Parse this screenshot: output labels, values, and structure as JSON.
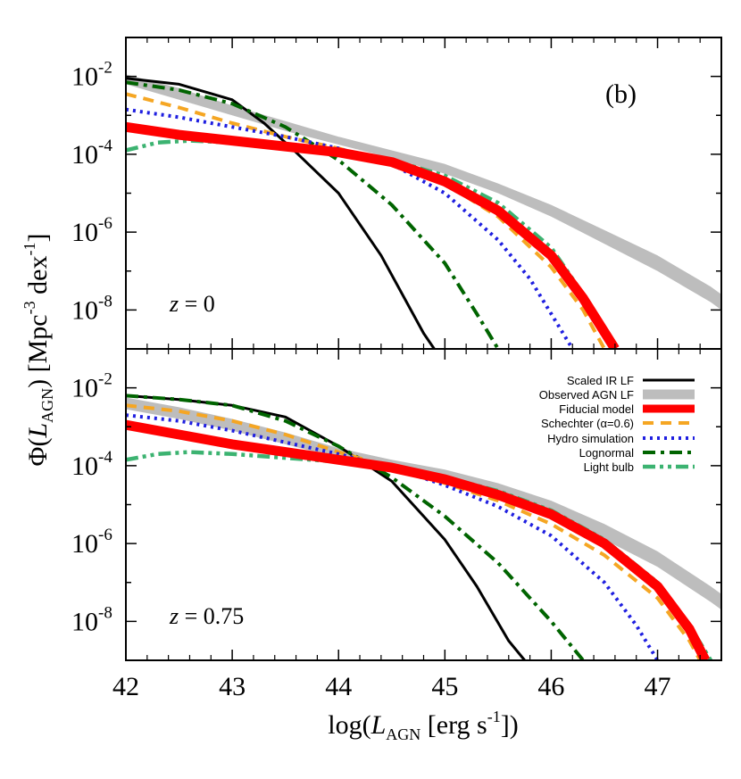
{
  "chart_data": {
    "type": "line",
    "panel_label": "(b)",
    "xlabel_prefix": "log(",
    "xlabel_symbol": "L",
    "xlabel_sub": "AGN",
    "xlabel_unit": " [erg s",
    "xlabel_exp": "-1",
    "xlabel_suffix": "])",
    "ylabel_prefix": "Φ(",
    "ylabel_symbol": "L",
    "ylabel_sub": "AGN",
    "ylabel_mid": ") [Mpc",
    "ylabel_exp1": "-3",
    "ylabel_unit2": " dex",
    "ylabel_exp2": "-1",
    "ylabel_suffix": "]",
    "xlim": [
      42,
      47.6
    ],
    "ylim_log10": [
      -9.0,
      -1.0
    ],
    "y_scale": "log",
    "x_ticks": [
      "42",
      "43",
      "44",
      "45",
      "46",
      "47"
    ],
    "y_tick_base": "10",
    "y_tick_exps": [
      "-2",
      "-4",
      "-6",
      "-8"
    ],
    "legend_position": "lower-panel top-right",
    "legend": [
      "Scaled IR LF",
      "Observed AGN LF",
      "Fiducial model",
      "Schechter (α=0.6)",
      "Hydro simulation",
      "Lognormal",
      "Light bulb"
    ],
    "colors": {
      "scaled_ir": "#000000",
      "observed": "#bdbdbd",
      "fiducial": "#ff0000",
      "schechter": "#f5a623",
      "hydro": "#1f1fe0",
      "lognormal": "#006400",
      "lightbulb": "#3cb371"
    },
    "panels": [
      {
        "label_var": "z",
        "label_val": " = 0",
        "x": [
          42.0,
          42.5,
          43.0,
          43.5,
          44.0,
          44.5,
          45.0,
          45.5,
          46.0,
          46.5,
          47.0,
          47.5,
          47.6
        ],
        "series": [
          {
            "name": "Observed AGN LF",
            "style": "band",
            "lower": [
              -2.2,
              -2.6,
              -3.0,
              -3.4,
              -3.75,
              -4.1,
              -4.5,
              -5.0,
              -5.6,
              -6.3,
              -7.0,
              -7.8,
              -8.0
            ],
            "upper": [
              -1.95,
              -2.3,
              -2.75,
              -3.15,
              -3.55,
              -3.9,
              -4.25,
              -4.75,
              -5.3,
              -5.95,
              -6.6,
              -7.4,
              -7.6
            ]
          },
          {
            "name": "Scaled IR LF",
            "style": "solid",
            "x": [
              42.0,
              42.5,
              43.0,
              43.3,
              43.6,
              44.0,
              44.4,
              44.8,
              44.9
            ],
            "values": [
              -2.05,
              -2.2,
              -2.6,
              -3.2,
              -3.95,
              -5.0,
              -6.6,
              -8.6,
              -9.0
            ]
          },
          {
            "name": "Fiducial model",
            "style": "thick",
            "x": [
              42.0,
              42.5,
              43.0,
              43.5,
              44.0,
              44.5,
              45.0,
              45.5,
              46.0,
              46.3,
              46.6
            ],
            "values": [
              -3.3,
              -3.5,
              -3.65,
              -3.8,
              -3.95,
              -4.2,
              -4.7,
              -5.45,
              -6.6,
              -7.7,
              -9.0
            ]
          },
          {
            "name": "Schechter (α=0.6)",
            "style": "dashed",
            "x": [
              42.0,
              42.5,
              43.0,
              43.5,
              44.0,
              44.5,
              45.0,
              45.5,
              46.0,
              46.3,
              46.5
            ],
            "values": [
              -2.45,
              -2.8,
              -3.2,
              -3.55,
              -3.85,
              -4.2,
              -4.75,
              -5.6,
              -6.9,
              -8.0,
              -9.0
            ]
          },
          {
            "name": "Hydro simulation",
            "style": "dotted",
            "x": [
              42.0,
              42.5,
              43.0,
              43.5,
              44.0,
              44.5,
              45.0,
              45.5,
              45.8,
              46.0,
              46.2
            ],
            "values": [
              -2.85,
              -3.05,
              -3.3,
              -3.55,
              -3.85,
              -4.25,
              -5.0,
              -6.2,
              -7.2,
              -8.1,
              -9.0
            ]
          },
          {
            "name": "Lognormal",
            "style": "dashdot",
            "x": [
              42.0,
              42.5,
              43.0,
              43.5,
              44.0,
              44.5,
              45.0,
              45.3,
              45.5
            ],
            "values": [
              -2.15,
              -2.35,
              -2.7,
              -3.3,
              -4.15,
              -5.3,
              -6.8,
              -8.1,
              -9.0
            ]
          },
          {
            "name": "Light bulb",
            "style": "dashdotdot",
            "x": [
              42.0,
              42.3,
              42.6,
              43.0,
              43.5,
              44.0,
              44.5,
              45.0,
              45.5,
              46.0,
              46.3,
              46.6
            ],
            "values": [
              -3.9,
              -3.7,
              -3.65,
              -3.7,
              -3.8,
              -3.95,
              -4.15,
              -4.55,
              -5.25,
              -6.4,
              -7.6,
              -9.0
            ]
          }
        ]
      },
      {
        "label_var": "z",
        "label_val": " = 0.75",
        "x": [
          42.0,
          42.5,
          43.0,
          43.5,
          44.0,
          44.5,
          45.0,
          45.5,
          46.0,
          46.5,
          47.0,
          47.5,
          47.6
        ],
        "series": [
          {
            "name": "Observed AGN LF",
            "style": "band",
            "lower": [
              -2.55,
              -2.8,
              -3.1,
              -3.45,
              -3.8,
              -4.1,
              -4.4,
              -4.8,
              -5.3,
              -5.9,
              -6.6,
              -7.5,
              -7.7
            ],
            "upper": [
              -2.25,
              -2.5,
              -2.8,
              -3.15,
              -3.55,
              -3.85,
              -4.1,
              -4.45,
              -4.9,
              -5.5,
              -6.2,
              -7.1,
              -7.3
            ]
          },
          {
            "name": "Scaled IR LF",
            "style": "solid",
            "x": [
              42.0,
              42.5,
              43.0,
              43.5,
              44.0,
              44.5,
              45.0,
              45.3,
              45.6,
              45.75
            ],
            "values": [
              -2.2,
              -2.3,
              -2.45,
              -2.75,
              -3.5,
              -4.4,
              -5.9,
              -7.1,
              -8.5,
              -9.0
            ]
          },
          {
            "name": "Fiducial model",
            "style": "thick",
            "x": [
              42.0,
              42.5,
              43.0,
              43.5,
              44.0,
              44.5,
              45.0,
              45.5,
              46.0,
              46.5,
              47.0,
              47.3,
              47.45
            ],
            "values": [
              -2.95,
              -3.2,
              -3.45,
              -3.65,
              -3.85,
              -4.05,
              -4.35,
              -4.75,
              -5.25,
              -6.0,
              -7.1,
              -8.2,
              -9.0
            ]
          },
          {
            "name": "Schechter (α=0.6)",
            "style": "dashed",
            "x": [
              42.0,
              42.5,
              43.0,
              43.5,
              44.0,
              44.5,
              45.0,
              45.5,
              46.0,
              46.5,
              47.0,
              47.3,
              47.4
            ],
            "values": [
              -2.45,
              -2.6,
              -2.85,
              -3.2,
              -3.65,
              -4.05,
              -4.45,
              -4.9,
              -5.5,
              -6.3,
              -7.4,
              -8.5,
              -9.0
            ]
          },
          {
            "name": "Hydro simulation",
            "style": "dotted",
            "x": [
              42.0,
              42.5,
              43.0,
              43.5,
              44.0,
              44.5,
              45.0,
              45.5,
              46.0,
              46.5,
              46.8,
              47.0
            ],
            "values": [
              -2.7,
              -2.85,
              -3.1,
              -3.4,
              -3.7,
              -4.05,
              -4.5,
              -5.05,
              -5.8,
              -7.0,
              -8.1,
              -9.0
            ]
          },
          {
            "name": "Lognormal",
            "style": "dashdot",
            "x": [
              42.0,
              42.5,
              43.0,
              43.5,
              44.0,
              44.5,
              45.0,
              45.5,
              46.0,
              46.3
            ],
            "values": [
              -2.2,
              -2.3,
              -2.45,
              -2.85,
              -3.5,
              -4.3,
              -5.3,
              -6.5,
              -8.0,
              -9.0
            ]
          },
          {
            "name": "Light bulb",
            "style": "dashdotdot",
            "x": [
              42.0,
              42.3,
              42.6,
              43.0,
              43.5,
              44.0,
              44.5,
              45.0,
              45.5,
              46.0,
              46.5,
              47.0,
              47.3,
              47.5
            ],
            "values": [
              -3.85,
              -3.7,
              -3.65,
              -3.7,
              -3.8,
              -3.9,
              -4.05,
              -4.3,
              -4.65,
              -5.15,
              -5.9,
              -7.0,
              -8.1,
              -9.0
            ]
          }
        ]
      }
    ]
  }
}
